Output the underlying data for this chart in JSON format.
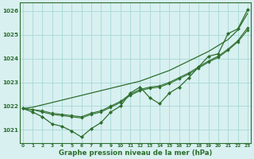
{
  "hours": [
    0,
    1,
    2,
    3,
    4,
    5,
    6,
    7,
    8,
    9,
    10,
    11,
    12,
    13,
    14,
    15,
    16,
    17,
    18,
    19,
    20,
    21,
    22,
    23
  ],
  "line_straight": [
    1021.9,
    1021.95,
    1022.05,
    1022.15,
    1022.25,
    1022.35,
    1022.45,
    1022.55,
    1022.65,
    1022.75,
    1022.85,
    1022.95,
    1023.05,
    1023.2,
    1023.35,
    1023.5,
    1023.7,
    1023.9,
    1024.1,
    1024.3,
    1024.55,
    1024.8,
    1025.2,
    1025.9
  ],
  "line_wavy": [
    1021.9,
    1021.75,
    1021.55,
    1021.25,
    1021.15,
    1020.95,
    1020.7,
    1021.05,
    1021.3,
    1021.75,
    1022.0,
    1022.55,
    1022.8,
    1022.35,
    1022.1,
    1022.55,
    1022.8,
    1023.2,
    1023.65,
    1024.1,
    1024.2,
    1025.05,
    1025.25,
    1026.05
  ],
  "line_mid1": [
    1021.9,
    1021.85,
    1021.8,
    1021.7,
    1021.65,
    1021.6,
    1021.55,
    1021.7,
    1021.8,
    1022.0,
    1022.2,
    1022.5,
    1022.7,
    1022.8,
    1022.85,
    1023.0,
    1023.2,
    1023.4,
    1023.65,
    1023.9,
    1024.1,
    1024.4,
    1024.75,
    1025.3
  ],
  "line_mid2": [
    1021.9,
    1021.85,
    1021.75,
    1021.65,
    1021.6,
    1021.55,
    1021.5,
    1021.65,
    1021.75,
    1021.95,
    1022.15,
    1022.45,
    1022.65,
    1022.75,
    1022.8,
    1022.95,
    1023.15,
    1023.35,
    1023.6,
    1023.85,
    1024.05,
    1024.35,
    1024.7,
    1025.2
  ],
  "bg_color": "#d8f0f0",
  "grid_color": "#a8d8d8",
  "line_color": "#2d6e2d",
  "xlabel": "Graphe pression niveau de la mer (hPa)",
  "ylim_min": 1020.45,
  "ylim_max": 1026.35,
  "yticks": [
    1021,
    1022,
    1023,
    1024,
    1025,
    1026
  ]
}
